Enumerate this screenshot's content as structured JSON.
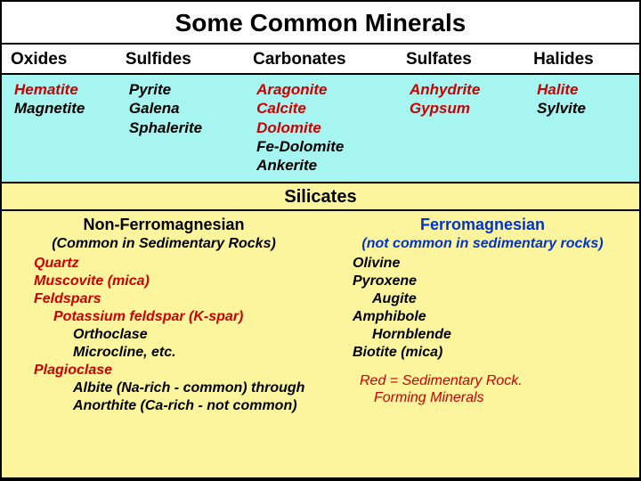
{
  "title": "Some Common Minerals",
  "bg_colors": {
    "top_header": "#ffffff",
    "top_body": "#a6f5f0",
    "sil_header": "#fcf59e",
    "sil_body": "#fcf59e"
  },
  "columns": [
    {
      "header": "Oxides",
      "minerals": [
        {
          "name": "Hematite",
          "red": true
        },
        {
          "name": "Magnetite",
          "red": false
        }
      ]
    },
    {
      "header": "Sulfides",
      "minerals": [
        {
          "name": "Pyrite",
          "red": false
        },
        {
          "name": "Galena",
          "red": false
        },
        {
          "name": "Sphalerite",
          "red": false
        }
      ]
    },
    {
      "header": "Carbonates",
      "minerals": [
        {
          "name": "Aragonite",
          "red": true
        },
        {
          "name": "Calcite",
          "red": true
        },
        {
          "name": "Dolomite",
          "red": true
        },
        {
          "name": "Fe-Dolomite",
          "red": false
        },
        {
          "name": "Ankerite",
          "red": false
        }
      ]
    },
    {
      "header": "Sulfates",
      "minerals": [
        {
          "name": "Anhydrite",
          "red": true
        },
        {
          "name": "Gypsum",
          "red": true
        }
      ]
    },
    {
      "header": "Halides",
      "minerals": [
        {
          "name": "Halite",
          "red": true
        },
        {
          "name": "Sylvite",
          "red": false
        }
      ]
    }
  ],
  "silicates": {
    "header": "Silicates",
    "left": {
      "title": "Non-Ferromagnesian",
      "subtitle": "(Common in Sedimentary Rocks)",
      "items": [
        {
          "text": "Quartz",
          "red": true,
          "indent": 1
        },
        {
          "text": "Muscovite (mica)",
          "red": true,
          "indent": 1
        },
        {
          "text": "Feldspars",
          "red": true,
          "indent": 1
        },
        {
          "text": "Potassium feldspar (K-spar)",
          "red": true,
          "indent": 2
        },
        {
          "text": "Orthoclase",
          "red": false,
          "indent": 3
        },
        {
          "text": "Microcline, etc.",
          "red": false,
          "indent": 3
        },
        {
          "text": "Plagioclase",
          "red": true,
          "indent": 1
        },
        {
          "text": "Albite (Na-rich - common) through",
          "red": false,
          "indent": 3
        },
        {
          "text": "Anorthite (Ca-rich - not common)",
          "red": false,
          "indent": 3
        }
      ]
    },
    "right": {
      "title": "Ferromagnesian",
      "subtitle": "(not common in sedimentary rocks)",
      "items": [
        {
          "text": "Olivine",
          "red": false,
          "indent": 1
        },
        {
          "text": "Pyroxene",
          "red": false,
          "indent": 1
        },
        {
          "text": "Augite",
          "red": false,
          "indent": 2
        },
        {
          "text": "Amphibole",
          "red": false,
          "indent": 1
        },
        {
          "text": "Hornblende",
          "red": false,
          "indent": 2
        },
        {
          "text": "Biotite (mica)",
          "red": false,
          "indent": 1
        }
      ],
      "legend": {
        "line1": "Red = Sedimentary Rock.",
        "line2": "Forming Minerals"
      }
    }
  }
}
